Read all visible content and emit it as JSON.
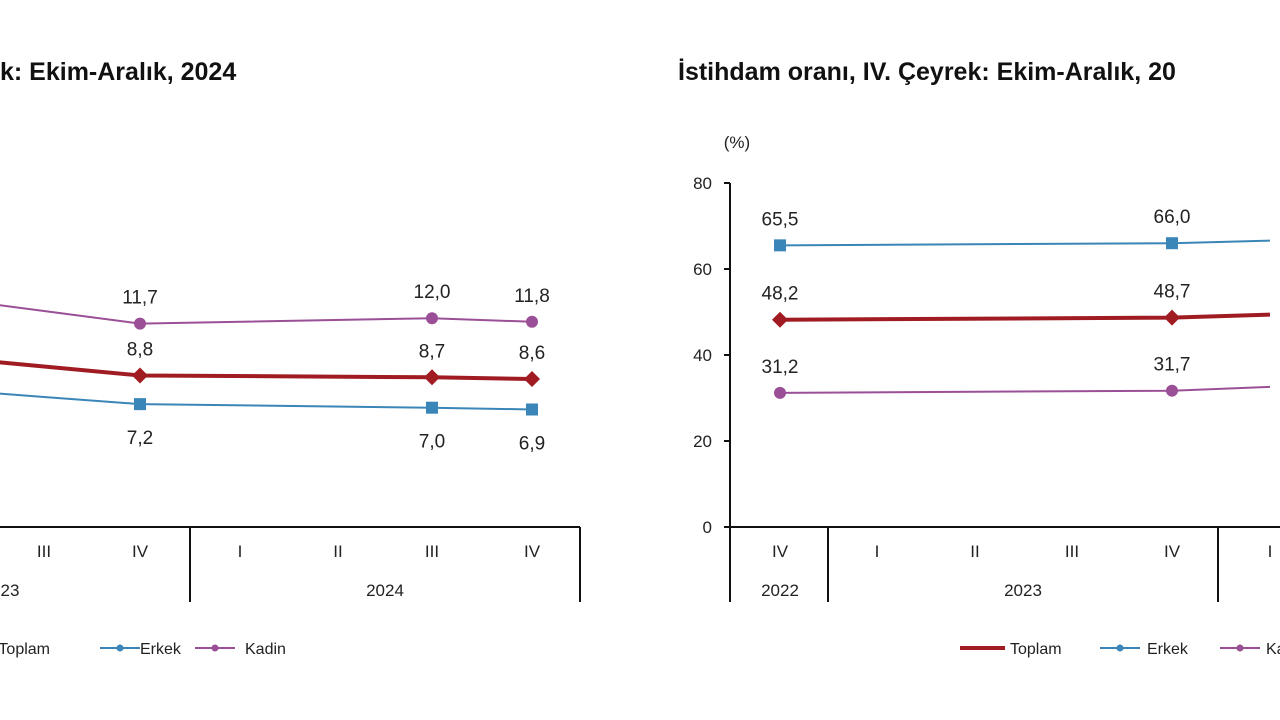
{
  "chart_data": [
    {
      "type": "line",
      "title": "k: Ekim-Aralık, 2024",
      "ylabel": "",
      "ylim": [
        0,
        30
      ],
      "categories": [
        "III",
        "IV",
        "I",
        "II",
        "III",
        "IV"
      ],
      "years": [
        {
          "label": "23",
          "span": [
            0,
            1
          ]
        },
        {
          "label": "2024",
          "span": [
            2,
            5
          ]
        }
      ],
      "series": [
        {
          "name": "Toplam",
          "color": "#a01c22",
          "values": [
            9.3,
            8.8,
            null,
            null,
            8.7,
            8.6
          ],
          "labels": [
            null,
            "8,8",
            null,
            null,
            "8,7",
            "8,6"
          ]
        },
        {
          "name": "Erkek",
          "color": "#3a86b8",
          "values": [
            7.6,
            7.2,
            null,
            null,
            7.0,
            6.9
          ],
          "labels": [
            null,
            "7,2",
            null,
            null,
            "7,0",
            "6,9"
          ]
        },
        {
          "name": "Kadın",
          "color": "#9b4f96",
          "values": [
            12.4,
            11.7,
            null,
            null,
            12.0,
            11.8
          ],
          "labels": [
            null,
            "11,7",
            null,
            null,
            "12,0",
            "11,8"
          ]
        }
      ],
      "legend": [
        "Toplam",
        "Erkek",
        "Kadin"
      ]
    },
    {
      "type": "line",
      "title": "İstihdam oranı, IV. Çeyrek: Ekim-Aralık, 20",
      "ylabel": "(%)",
      "ylim": [
        0,
        80
      ],
      "yticks": [
        "0",
        "20",
        "40",
        "60",
        "80"
      ],
      "categories": [
        "IV",
        "I",
        "II",
        "III",
        "IV",
        "I"
      ],
      "years": [
        {
          "label": "2022",
          "span": [
            0,
            0
          ]
        },
        {
          "label": "2023",
          "span": [
            1,
            4
          ]
        }
      ],
      "series": [
        {
          "name": "Toplam",
          "color": "#a01c22",
          "values": [
            48.2,
            null,
            null,
            null,
            48.7,
            49.4
          ],
          "labels": [
            "48,2",
            null,
            null,
            null,
            "48,7",
            null
          ]
        },
        {
          "name": "Erkek",
          "color": "#3a86b8",
          "values": [
            65.5,
            null,
            null,
            null,
            66.0,
            66.6
          ],
          "labels": [
            "65,5",
            null,
            null,
            null,
            "66,0",
            null
          ]
        },
        {
          "name": "Kadın",
          "color": "#9b4f96",
          "values": [
            31.2,
            null,
            null,
            null,
            31.7,
            32.6
          ],
          "labels": [
            "31,2",
            null,
            null,
            null,
            "31,7",
            null
          ]
        }
      ],
      "legend": [
        "Toplam",
        "Erkek",
        "Kadin"
      ]
    }
  ]
}
